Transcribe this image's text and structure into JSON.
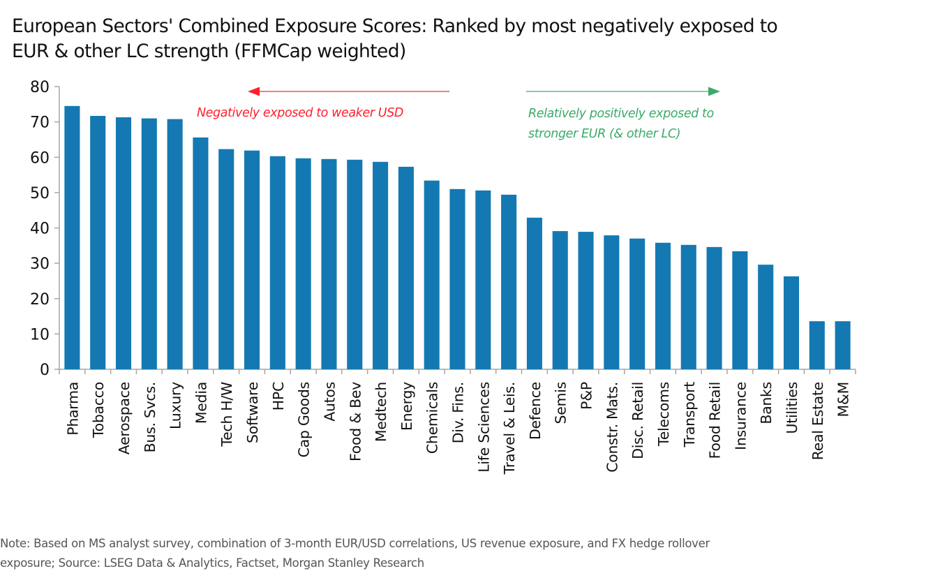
{
  "chart_data": {
    "type": "bar",
    "title": "European Sectors' Combined Exposure Scores: Ranked by most negatively exposed to EUR & other LC strength (FFMCap weighted)",
    "title_lines": [
      "European Sectors' Combined Exposure Scores: Ranked by most negatively exposed to",
      "EUR & other LC strength (FFMCap weighted)"
    ],
    "xlabel": "",
    "ylabel": "",
    "ylim": [
      0,
      80
    ],
    "yticks": [
      0,
      10,
      20,
      30,
      40,
      50,
      60,
      70,
      80
    ],
    "grid": false,
    "bar_color": "#1479B2",
    "categories": [
      "Pharma",
      "Tobacco",
      "Aerospace",
      "Bus. Svcs.",
      "Luxury",
      "Media",
      "Tech H/W",
      "Software",
      "HPC",
      "Cap Goods",
      "Autos",
      "Food & Bev",
      "Medtech",
      "Energy",
      "Chemicals",
      "Div. Fins.",
      "Life Sciences",
      "Travel & Leis.",
      "Defence",
      "Semis",
      "P&P",
      "Constr. Mats.",
      "Disc. Retail",
      "Telecoms",
      "Transport",
      "Food Retail",
      "Insurance",
      "Banks",
      "Utilities",
      "Real Estate",
      "M&M"
    ],
    "values": [
      74.5,
      71.7,
      71.3,
      71.0,
      70.8,
      65.6,
      62.3,
      61.9,
      60.3,
      59.7,
      59.5,
      59.3,
      58.7,
      57.3,
      53.4,
      51.0,
      50.6,
      49.4,
      42.9,
      39.1,
      38.9,
      37.9,
      37.0,
      35.8,
      35.2,
      34.6,
      33.4,
      29.6,
      26.3,
      13.6,
      13.6
    ],
    "annotations": [
      {
        "name": "negative-annotation",
        "lines": [
          "Negatively exposed to weaker USD"
        ],
        "arrow_direction": "left",
        "color": "#FF1F2D"
      },
      {
        "name": "positive-annotation",
        "lines": [
          "Relatively positively exposed to",
          "stronger EUR (& other LC)"
        ],
        "arrow_direction": "right",
        "color": "#3BAA6A"
      }
    ]
  },
  "note_lines": [
    "Note: Based on MS analyst survey, combination of 3-month EUR/USD correlations, US revenue exposure, and FX hedge rollover",
    "exposure; Source: LSEG Data & Analytics, Factset, Morgan Stanley Research"
  ]
}
